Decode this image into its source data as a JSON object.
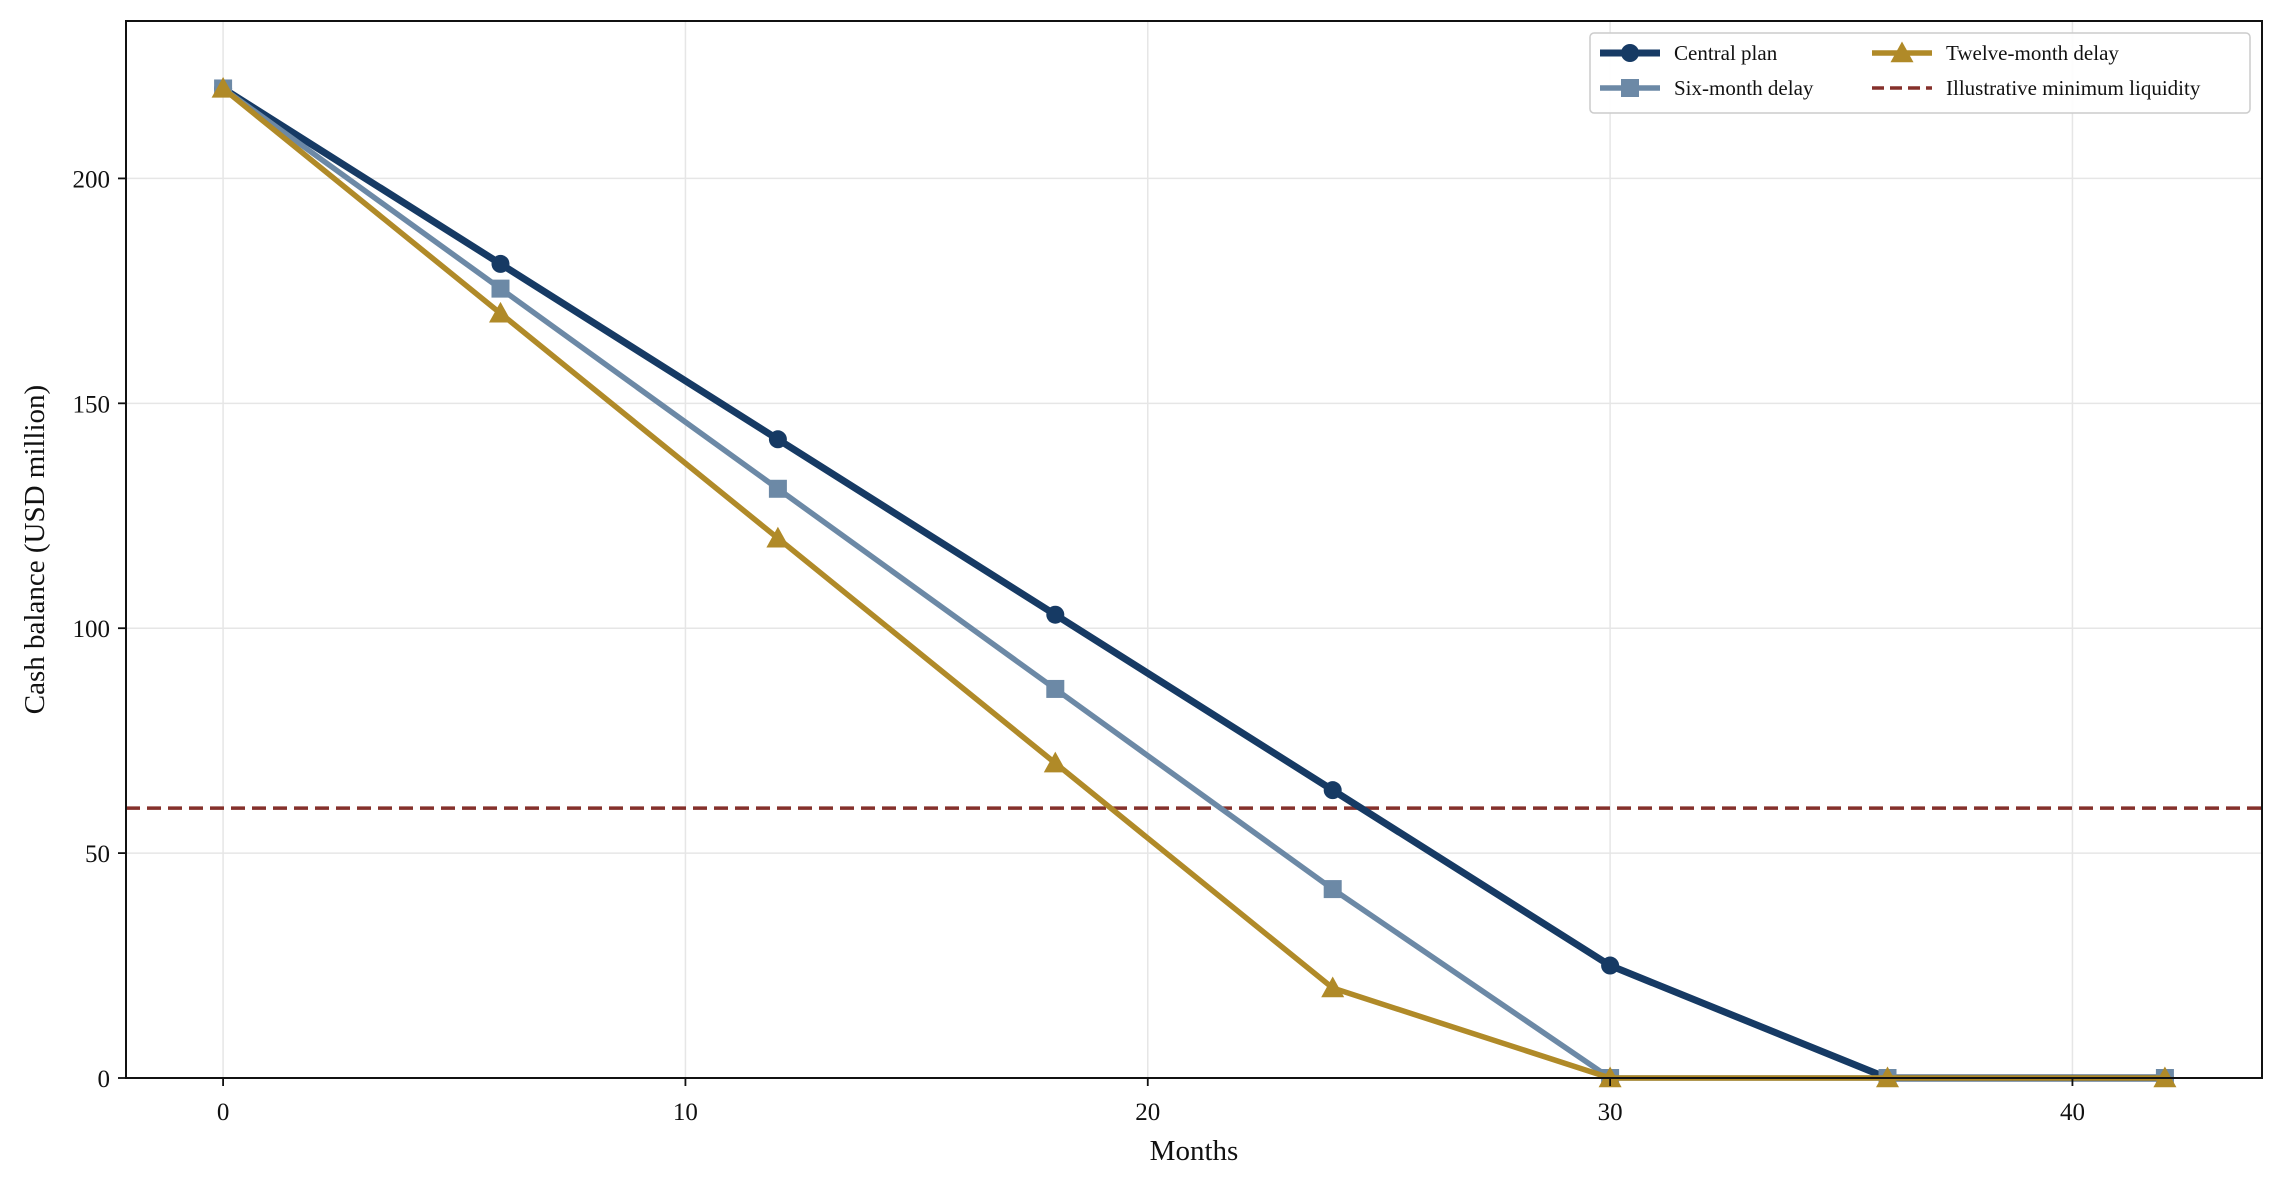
{
  "chart_data": {
    "type": "line",
    "title": "",
    "xlabel": "Months",
    "ylabel": "Cash balance (USD million)",
    "xlim": [
      -2.1,
      44.1
    ],
    "ylim": [
      0,
      235
    ],
    "x_ticks": [
      0,
      10,
      20,
      30,
      40
    ],
    "y_ticks": [
      0,
      50,
      100,
      150,
      200
    ],
    "grid": true,
    "legend_position": "top-right",
    "legend_columns": 2,
    "series": [
      {
        "name": "Central plan",
        "color": "#163a64",
        "marker": "circle",
        "line_style": "solid",
        "x": [
          0,
          6,
          12,
          18,
          24,
          30,
          36,
          42
        ],
        "y": [
          220,
          181,
          142,
          103,
          64,
          25,
          0,
          0
        ]
      },
      {
        "name": "Six-month delay",
        "color": "#6c89a6",
        "marker": "square",
        "line_style": "solid",
        "x": [
          0,
          6,
          12,
          18,
          24,
          30,
          36,
          42
        ],
        "y": [
          220,
          175.5,
          131,
          86.5,
          42,
          0,
          0,
          0
        ]
      },
      {
        "name": "Twelve-month delay",
        "color": "#b08a28",
        "marker": "triangle",
        "line_style": "solid",
        "x": [
          0,
          6,
          12,
          18,
          24,
          30,
          36,
          42
        ],
        "y": [
          220,
          170,
          120,
          70,
          20,
          0,
          0,
          0
        ]
      }
    ],
    "reference_lines": [
      {
        "name": "Illustrative minimum liquidity",
        "orientation": "horizontal",
        "y": 60,
        "color": "#85302b",
        "line_style": "dashed"
      }
    ],
    "legend_order": [
      "Central plan",
      "Six-month delay",
      "Twelve-month delay",
      "Illustrative minimum liquidity"
    ]
  }
}
